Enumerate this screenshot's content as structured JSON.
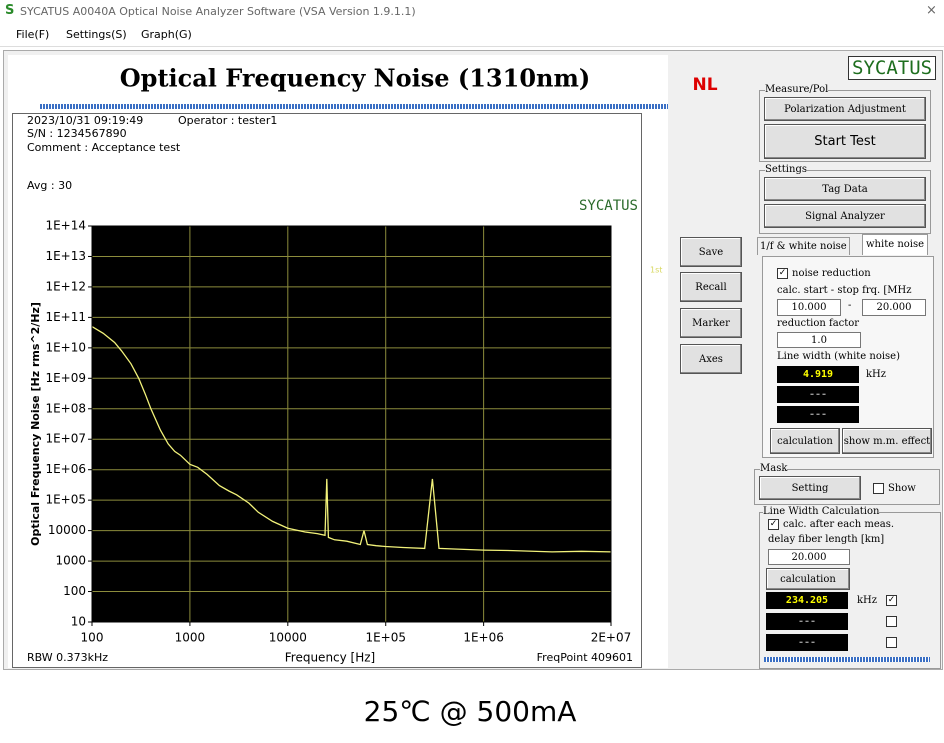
{
  "window": {
    "title": "SYCATUS A0040A Optical Noise Analyzer Software (VSA Version 1.9.1.1)",
    "menu": [
      "File(F)",
      "Settings(S)",
      "Graph(G)"
    ]
  },
  "chart_data": {
    "type": "line",
    "title": "Optical Frequency Noise (1310nm)",
    "status": "NL",
    "marker_label": "1st",
    "info": {
      "date": "2023/10/31 09:19:49",
      "operator": "Operator : tester1",
      "serial": "S/N : 1234567890",
      "comment": "Comment : Acceptance test",
      "average": "Avg : 30"
    },
    "watermark": "SYCATUS",
    "x_label": "Frequency [Hz]",
    "y_label": "Optical Frequency Noise [Hz rms^2/Hz]",
    "footer_left": "RBW 0.373kHz",
    "footer_right": "FreqPoint 409601",
    "log_x": true,
    "log_y": true,
    "grid": true,
    "background": "#000000",
    "grid_color": "#8c8c3c",
    "color": "#f2f27a",
    "xlim": [
      100,
      20000000
    ],
    "ylim": [
      10,
      100000000000000
    ],
    "xticks": [
      100,
      1000,
      10000,
      {
        "value": 100000,
        "label": "1E+05"
      },
      {
        "value": 1000000,
        "label": "1E+06"
      },
      {
        "value": 20000000,
        "label": "2E+07"
      }
    ],
    "yticks": [
      10,
      100,
      1000,
      10000,
      {
        "value": 100000,
        "label": "1E+05"
      },
      {
        "value": 1000000,
        "label": "1E+06"
      },
      {
        "value": 10000000,
        "label": "1E+07"
      },
      {
        "value": 100000000,
        "label": "1E+08"
      },
      {
        "value": 1000000000,
        "label": "1E+09"
      },
      {
        "value": 10000000000,
        "label": "1E+10"
      },
      {
        "value": 100000000000,
        "label": "1E+11"
      },
      {
        "value": 1000000000000,
        "label": "1E+12"
      },
      {
        "value": 10000000000000,
        "label": "1E+13"
      },
      {
        "value": 100000000000000,
        "label": "1E+14"
      }
    ],
    "x": [
      100,
      130,
      170,
      200,
      250,
      300,
      350,
      400,
      500,
      600,
      700,
      800,
      1000,
      1200,
      1500,
      2000,
      2500,
      3000,
      4000,
      5000,
      7000,
      10000,
      15000,
      20000,
      24000,
      25000,
      26000,
      30000,
      40000,
      55000,
      60000,
      65000,
      80000,
      100000,
      150000,
      250000,
      300000,
      350000,
      500000,
      1000000,
      2000000,
      5000000,
      10000000,
      20000000
    ],
    "values": [
      50000000000.0,
      30000000000.0,
      15000000000.0,
      8000000000.0,
      3000000000.0,
      1000000000.0,
      300000000.0,
      100000000.0,
      20000000.0,
      7000000.0,
      4000000.0,
      3000000.0,
      1500000.0,
      1200000.0,
      700000.0,
      300000.0,
      200000.0,
      150000.0,
      80000.0,
      40000.0,
      20000.0,
      12000.0,
      9000,
      8000,
      7000,
      500000.0,
      6000,
      5000,
      4500,
      3500,
      10000.0,
      3500,
      3200,
      3000,
      2800,
      2600,
      500000.0,
      2600,
      2500,
      2300,
      2200,
      2000,
      2100,
      2000
    ]
  },
  "side_buttons": [
    "Save",
    "Recall",
    "Marker",
    "Axes"
  ],
  "panel": {
    "logo": "SYCATUS",
    "measure_group": "Measure/Pol",
    "polarization_button": "Polarization Adjustment",
    "start_button": "Start Test",
    "settings_group": "Settings",
    "tag_button": "Tag Data",
    "analyzer_button": "Signal Analyzer",
    "tabs": [
      "1/f & white noise",
      "white noise"
    ],
    "noise_reduction": "noise reduction",
    "calc_range_label": "calc. start - stop frq. [MHz",
    "start_freq": "10.000",
    "range_dash": "-",
    "stop_freq": "20.000",
    "reduction_label": "reduction factor",
    "reduction_factor": "1.0",
    "linewidth_label": "Line width (white noise)",
    "linewidth_value": "4.919",
    "linewidth_unit": "kHz",
    "empty_values": [
      "---",
      "---"
    ],
    "calc_button": "calculation",
    "show_button": "show m.m. effect",
    "mask_group": "Mask",
    "mask_setting": "Setting",
    "mask_show": "Show",
    "lw_group": "Line Width Calculation",
    "auto_calc": "calc. after each meas.",
    "fiber_label": "delay fiber length [km]",
    "fiber_length": "20.000",
    "lw_calc_button": "calculation",
    "lw_value": "234.205",
    "lw_unit": "kHz",
    "lw_empty": [
      "---",
      "---"
    ]
  },
  "caption": "25℃ @ 500mA"
}
